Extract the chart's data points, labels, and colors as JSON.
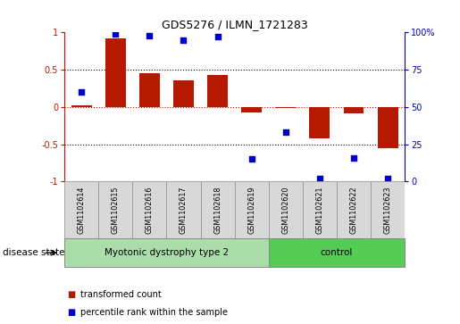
{
  "title": "GDS5276 / ILMN_1721283",
  "samples": [
    "GSM1102614",
    "GSM1102615",
    "GSM1102616",
    "GSM1102617",
    "GSM1102618",
    "GSM1102619",
    "GSM1102620",
    "GSM1102621",
    "GSM1102622",
    "GSM1102623"
  ],
  "bar_values": [
    0.02,
    0.92,
    0.45,
    0.36,
    0.43,
    -0.07,
    -0.02,
    -0.42,
    -0.09,
    -0.55
  ],
  "dot_values": [
    60,
    99,
    98,
    95,
    97,
    15,
    33,
    2,
    16,
    2
  ],
  "bar_color": "#b51a00",
  "dot_color": "#0000cc",
  "ylim_left": [
    -1,
    1
  ],
  "ylim_right": [
    0,
    100
  ],
  "yticks_left": [
    -1,
    -0.5,
    0,
    0.5,
    1
  ],
  "yticks_right": [
    0,
    25,
    50,
    75,
    100
  ],
  "ytick_labels_left": [
    "-1",
    "-0.5",
    "0",
    "0.5",
    "1"
  ],
  "ytick_labels_right": [
    "0",
    "25",
    "50",
    "75",
    "100%"
  ],
  "hlines": [
    0.5,
    -0.5
  ],
  "hline_zero_color": "#cc0000",
  "hline_color": "#000000",
  "disease_groups": [
    {
      "label": "Myotonic dystrophy type 2",
      "start": 0,
      "end": 6,
      "color": "#aaddaa"
    },
    {
      "label": "control",
      "start": 6,
      "end": 10,
      "color": "#55cc55"
    }
  ],
  "disease_state_label": "disease state",
  "legend_bar_label": "transformed count",
  "legend_dot_label": "percentile rank within the sample",
  "bar_width": 0.6,
  "sample_box_color": "#d8d8d8",
  "sample_box_edge_color": "#999999"
}
